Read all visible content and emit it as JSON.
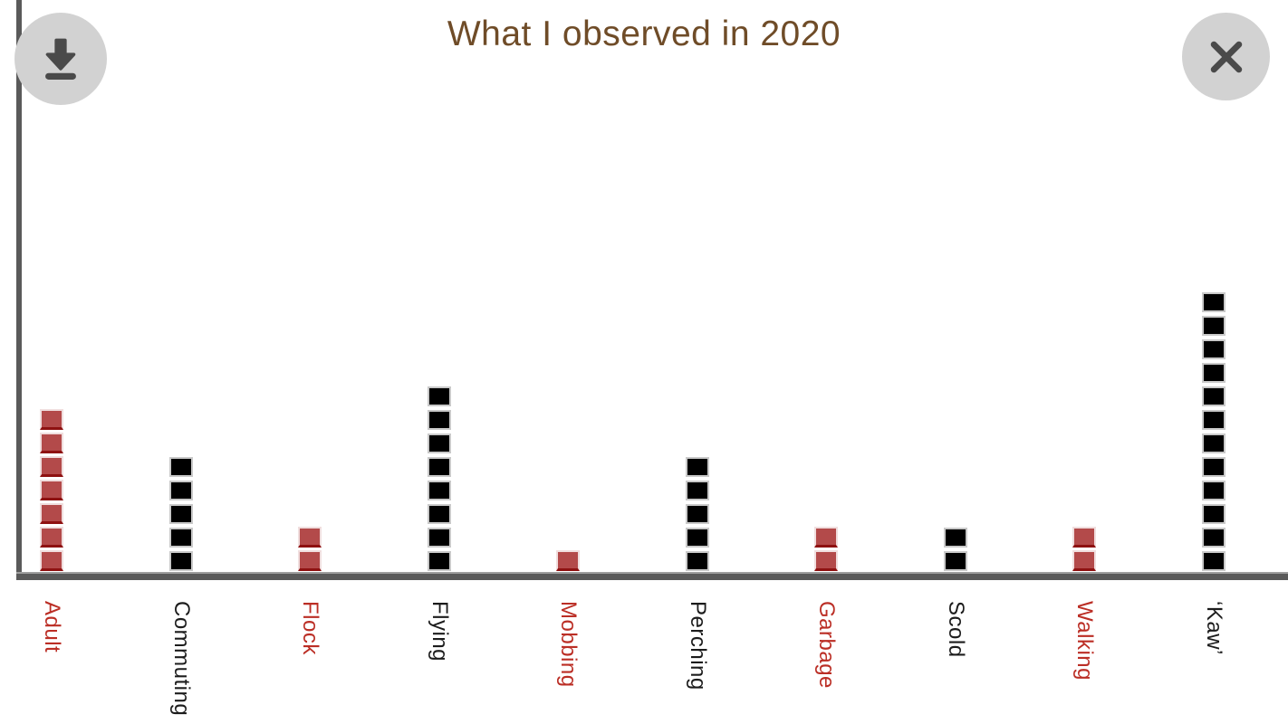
{
  "header": {
    "title": "What I observed in 2020"
  },
  "buttons": {
    "download_icon": "download-arrow",
    "close_icon": "x"
  },
  "colors": {
    "title": "#6f4c28",
    "axis": "#5a5a5a",
    "button_bg": "#d2d2d2",
    "button_icon": "#4a4a4a",
    "red_fill": "#b34a4a",
    "red_edge_bottom": "#8e1111",
    "red_outline": "#f0dede",
    "black_fill": "#000000",
    "black_outline": "#c9c9c9",
    "label_red": "#bb2e25",
    "label_black": "#1c1c1c"
  },
  "chart_data": {
    "type": "bar",
    "subtype": "unit-square-stack",
    "title": "What I observed in 2020",
    "categories": [
      "Adult",
      "Commuting",
      "Flock",
      "Flying",
      "Mobbing",
      "Perching",
      "Garbage",
      "Scold",
      "Walking",
      "‘Kaw’"
    ],
    "values": [
      7,
      5,
      2,
      8,
      1,
      5,
      2,
      2,
      2,
      12
    ],
    "colors": [
      "red",
      "black",
      "red",
      "black",
      "red",
      "black",
      "red",
      "black",
      "red",
      "black"
    ],
    "xlabel": "",
    "ylabel": "",
    "ylim": [
      0,
      12
    ],
    "grid": false,
    "legend": false,
    "unit_per_square": 1
  }
}
